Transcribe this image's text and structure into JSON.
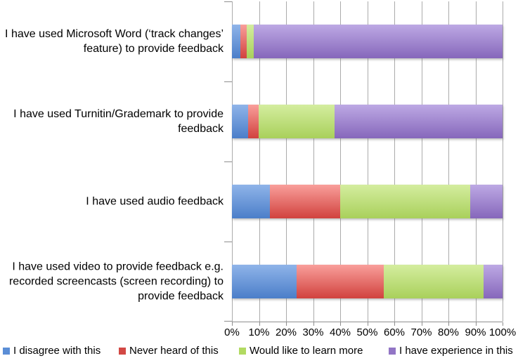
{
  "chart_data": {
    "type": "bar",
    "orientation": "horizontal",
    "stacked": true,
    "title": "",
    "xlabel": "",
    "ylabel": "",
    "xlim": [
      0,
      100
    ],
    "grid": "vertical",
    "legend_position": "bottom",
    "categories": [
      "I have used Microsoft Word (‘track changes’ feature) to provide feedback",
      "I have used Turnitin/Grademark to provide feedback",
      "I have used audio feedback",
      "I have used video to provide feedback e.g. recorded screencasts (screen recording) to provide feedback"
    ],
    "series": [
      {
        "name": "I disagree with this",
        "legend_color": "#5b8ed6",
        "color_top": "#8fb4e9",
        "color_bottom": "#4b7ec9",
        "values": [
          3,
          6,
          14,
          24
        ]
      },
      {
        "name": "Never heard of this",
        "legend_color": "#d24844",
        "color_top": "#f99f9b",
        "color_bottom": "#d1423e",
        "values": [
          2.5,
          4,
          26,
          32
        ]
      },
      {
        "name": "Would like to learn more",
        "legend_color": "#b2da62",
        "color_top": "#d4ed9f",
        "color_bottom": "#a9d05b",
        "values": [
          2.5,
          28,
          48,
          37
        ]
      },
      {
        "name": "I have experience in this",
        "legend_color": "#9275c5",
        "color_top": "#bda9e4",
        "color_bottom": "#8667bb",
        "values": [
          92,
          62,
          12,
          7
        ]
      }
    ],
    "x_ticks": [
      "0%",
      "10%",
      "20%",
      "30%",
      "40%",
      "50%",
      "60%",
      "70%",
      "80%",
      "90%",
      "100%"
    ]
  }
}
